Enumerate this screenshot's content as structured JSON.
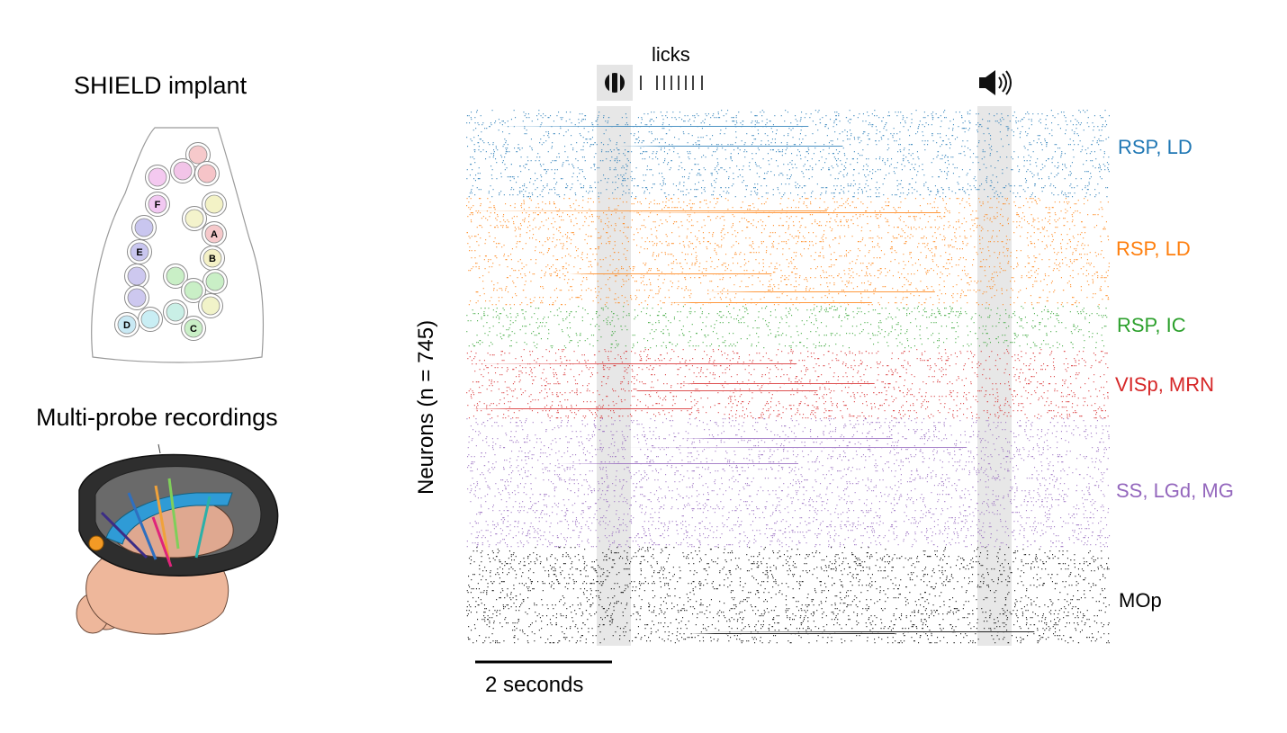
{
  "left": {
    "implant_title": "SHIELD implant",
    "recordings_title": "Multi-probe recordings",
    "hole_labels": [
      "A",
      "B",
      "C",
      "D",
      "E",
      "F"
    ]
  },
  "raster": {
    "licks_label": "licks",
    "lick_count": 8,
    "ylabel": "Neurons (n = 745)",
    "scale_bar_label": "2 seconds",
    "stimulus_icons": [
      "visual-stimulus-icon",
      "speaker-icon"
    ],
    "regions": [
      {
        "label": "RSP, LD",
        "color": "#1f77b4"
      },
      {
        "label": "RSP, LD",
        "color": "#ff7f0e"
      },
      {
        "label": "RSP, IC",
        "color": "#2ca02c"
      },
      {
        "label": "VISp, MRN",
        "color": "#d62728"
      },
      {
        "label": "SS, LGd, MG",
        "color": "#9467bd"
      },
      {
        "label": "MOp",
        "color": "#000000"
      }
    ]
  }
}
